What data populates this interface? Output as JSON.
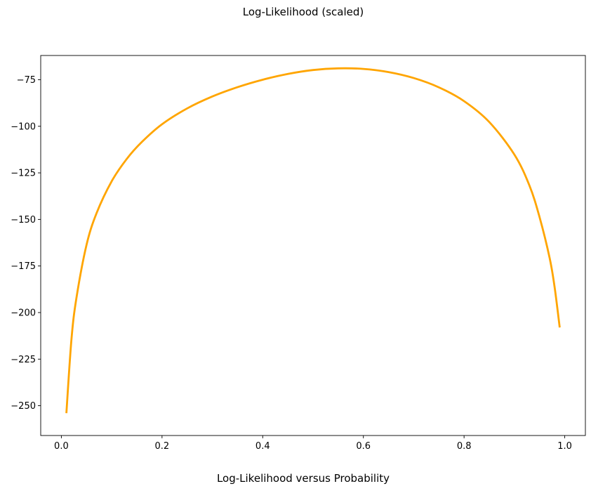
{
  "chart_data": {
    "type": "line",
    "title": "Log-Likelihood (scaled)",
    "xlabel": "Log-Likelihood versus Probability",
    "ylabel": "",
    "xlim": [
      -0.041,
      1.041
    ],
    "ylim": [
      -266,
      -62
    ],
    "xticks": [
      0.0,
      0.2,
      0.4,
      0.6,
      0.8,
      1.0
    ],
    "xtick_labels": [
      "0.0",
      "0.2",
      "0.4",
      "0.6",
      "0.8",
      "1.0"
    ],
    "yticks": [
      -75,
      -100,
      -125,
      -150,
      -175,
      -200,
      -225,
      -250
    ],
    "ytick_labels": [
      "−75",
      "−100",
      "−125",
      "−150",
      "−175",
      "−200",
      "−225",
      "−250"
    ],
    "grid": false,
    "series": [
      {
        "color": "#FFA500",
        "x": [
          0.01,
          0.02,
          0.03,
          0.05,
          0.07,
          0.1,
          0.13,
          0.16,
          0.2,
          0.25,
          0.3,
          0.35,
          0.4,
          0.45,
          0.5,
          0.55,
          0.6,
          0.65,
          0.7,
          0.75,
          0.8,
          0.85,
          0.9,
          0.93,
          0.95,
          0.97,
          0.98,
          0.99
        ],
        "y": [
          -254,
          -214.6,
          -192.1,
          -163.7,
          -146.6,
          -129.5,
          -117.5,
          -108.4,
          -98.9,
          -90.4,
          -84.0,
          -79.0,
          -75.0,
          -71.9,
          -69.8,
          -68.9,
          -69.2,
          -70.9,
          -74.1,
          -79.1,
          -86.5,
          -97.7,
          -115.2,
          -131.9,
          -148.8,
          -170.7,
          -186.6,
          -208.0
        ]
      }
    ]
  }
}
